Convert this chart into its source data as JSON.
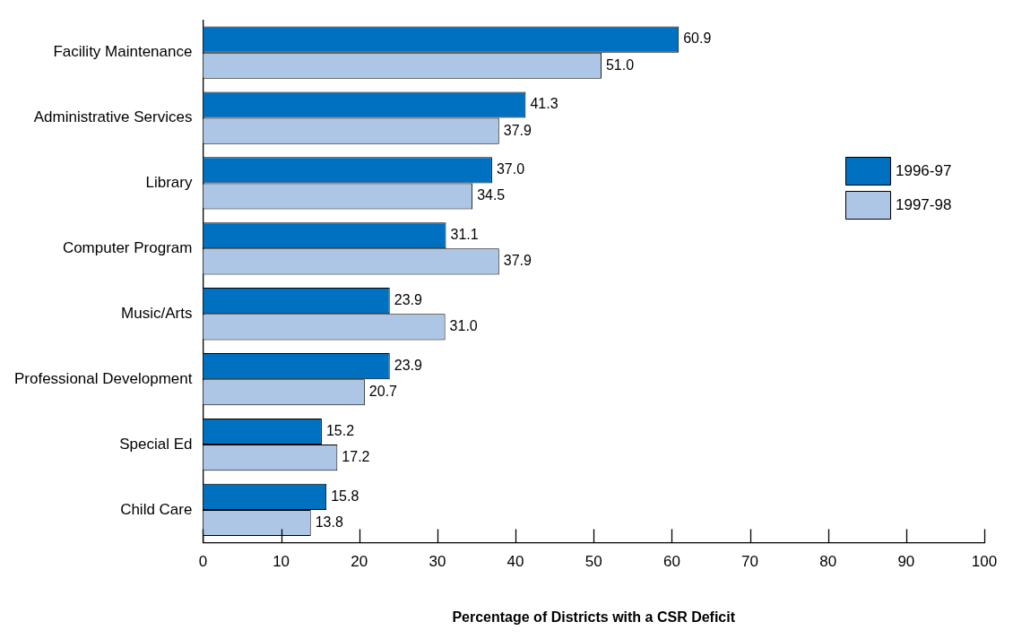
{
  "chart_data": {
    "type": "bar",
    "orientation": "horizontal",
    "xlabel": "Percentage of Districts with a CSR Deficit",
    "categories": [
      "Facility Maintenance",
      "Administrative Services",
      "Library",
      "Computer Program",
      "Music/Arts",
      "Professional Development",
      "Special Ed",
      "Child Care"
    ],
    "series": [
      {
        "name": "1996-97",
        "color": "#0070c0",
        "values": [
          60.9,
          41.3,
          37,
          31.1,
          23.9,
          23.9,
          15.2,
          15.8
        ],
        "value_labels": [
          "60.9",
          "41.3",
          "37.0",
          "31.1",
          "23.9",
          "23.9",
          "15.2",
          "15.8"
        ]
      },
      {
        "name": "1997-98",
        "color": "#adc6e6",
        "values": [
          51,
          37.9,
          34.5,
          37.9,
          31,
          20.7,
          17.2,
          13.8
        ],
        "value_labels": [
          "51.0",
          "37.9",
          "34.5",
          "37.9",
          "31.0",
          "20.7",
          "17.2",
          "13.8"
        ]
      }
    ],
    "xlim": [
      0,
      100
    ],
    "xticks": [
      0,
      10,
      20,
      30,
      40,
      50,
      60,
      70,
      80,
      90,
      100
    ],
    "grid": false,
    "legend": "right"
  }
}
